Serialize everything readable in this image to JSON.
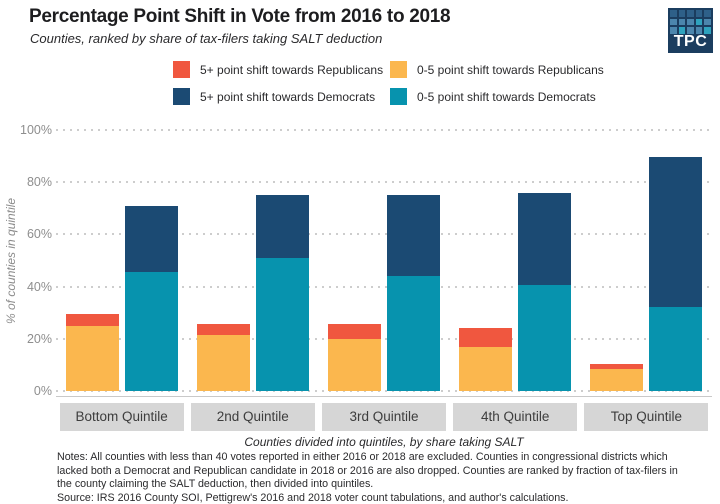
{
  "header": {
    "title": "Percentage Point Shift in Vote from 2016 to 2018",
    "subtitle": "Counties, ranked by share of tax-filers taking SALT deduction",
    "logo_text": "TPC",
    "logo_grid": [
      [
        "mid",
        "mid",
        "mid",
        "mid",
        "mid"
      ],
      [
        "light",
        "light",
        "light",
        "teal",
        "light"
      ],
      [
        "light",
        "teal",
        "light",
        "light",
        "teal"
      ]
    ]
  },
  "legend": {
    "items": [
      {
        "label": "5+ point shift towards Republicans",
        "color": "#F0573F"
      },
      {
        "label": "0-5 point shift towards Republicans",
        "color": "#FBB74E"
      },
      {
        "label": "5+ point shift towards Democrats",
        "color": "#1B4A73"
      },
      {
        "label": "0-5 point shift towards Democrats",
        "color": "#0793AE"
      }
    ]
  },
  "chart_data": {
    "type": "bar",
    "stacked": true,
    "title": "Percentage Point Shift in Vote from 2016 to 2018",
    "subtitle": "Counties, ranked by share of tax-filers taking SALT deduction",
    "categories": [
      "Bottom Quintile",
      "2nd Quintile",
      "3rd Quintile",
      "4th Quintile",
      "Top Quintile"
    ],
    "series": [
      {
        "name": "0-5 point shift towards Republicans",
        "bar": "republican",
        "color": "#FBB74E",
        "values": [
          25,
          21.5,
          20,
          17,
          8.5
        ]
      },
      {
        "name": "5+ point shift towards Republicans",
        "bar": "republican",
        "color": "#F0573F",
        "values": [
          4.5,
          4,
          5.5,
          7,
          2
        ]
      },
      {
        "name": "0-5 point shift towards Democrats",
        "bar": "democrat",
        "color": "#0793AE",
        "values": [
          45.5,
          51,
          44,
          40.5,
          32
        ]
      },
      {
        "name": "5+ point shift towards Democrats",
        "bar": "democrat",
        "color": "#1B4A73",
        "values": [
          25.5,
          24,
          31,
          35.5,
          57.5
        ]
      }
    ],
    "bar_totals": {
      "republican": [
        29.5,
        25.5,
        25.5,
        24,
        10.5
      ],
      "democrat": [
        71,
        75,
        75,
        76,
        89.5
      ]
    },
    "xlabel": "Counties divided into quintiles, by share taking SALT",
    "ylabel": "% of counties in quintile",
    "ylim": [
      0,
      100
    ],
    "yticks_percent": [
      0,
      20,
      40,
      60,
      80,
      100
    ],
    "grid": "dotted horizontal",
    "legend_position": "top"
  },
  "footer": {
    "notes": "Notes: All counties with less than 40 votes reported in either 2016 or 2018 are excluded. Counties in congressional districts which lacked both a Democrat and Republican candidate in 2018 or 2016 are also dropped. Counties are ranked by fraction of tax-filers in the county claiming the SALT deduction, then divided into quintiles.",
    "source": "Source: IRS 2016 County SOI, Pettigrew's 2016 and 2018 voter count tabulations, and author's calculations."
  },
  "colors": {
    "rep_5plus": "#F0573F",
    "rep_0to5": "#FBB74E",
    "dem_5plus": "#1B4A73",
    "dem_0to5": "#0793AE",
    "gridline": "#cdcdcd",
    "axis_line": "#c9c9c9",
    "tick_text": "#8e8e8e",
    "category_box_bg": "#d6d6d6",
    "logo_navy": "#1b3d5f",
    "logo_mid_blue": "#2e6089",
    "logo_light_blue": "#4c86ad",
    "logo_teal": "#2fa3be"
  }
}
